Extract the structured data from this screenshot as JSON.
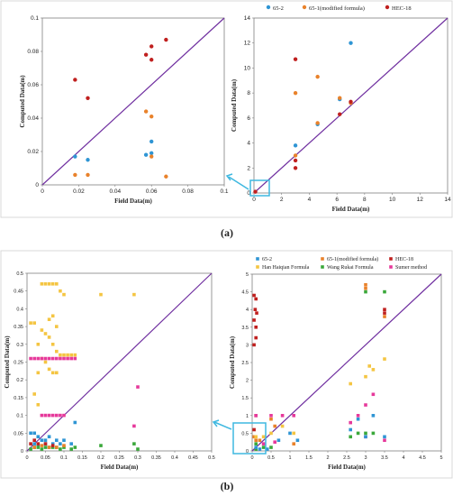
{
  "figure": {
    "panel_a_label": "(a)",
    "panel_b_label": "(b)"
  },
  "colors": {
    "series_65_2": "#2f95d4",
    "series_65_1": "#e9822b",
    "series_hec18": "#c0201f",
    "series_han": "#f4c542",
    "series_wang": "#3aa83a",
    "series_sumer": "#e6399b",
    "diagonal": "#7030a0",
    "highlight": "#3fb8e0"
  },
  "chart_data": [
    {
      "id": "a_left",
      "type": "scatter",
      "title": "",
      "xlabel": "Field Data(m)",
      "ylabel": "Computed Data(m)",
      "xlim": [
        0,
        0.1
      ],
      "ylim": [
        0,
        0.1
      ],
      "xticks": [
        "0",
        "0.02",
        "0.04",
        "0.06",
        "0.08",
        "0.1"
      ],
      "yticks": [
        "0",
        "0.02",
        "0.04",
        "0.06",
        "0.08",
        "0.1"
      ],
      "grid": false,
      "diagonal": true,
      "series": [
        {
          "key": "series_65_2",
          "points": [
            [
              0.018,
              0.017
            ],
            [
              0.025,
              0.015
            ],
            [
              0.057,
              0.018
            ],
            [
              0.06,
              0.019
            ],
            [
              0.06,
              0.026
            ]
          ]
        },
        {
          "key": "series_65_1",
          "points": [
            [
              0.018,
              0.006
            ],
            [
              0.025,
              0.006
            ],
            [
              0.057,
              0.044
            ],
            [
              0.06,
              0.041
            ],
            [
              0.06,
              0.017
            ],
            [
              0.068,
              0.005
            ]
          ]
        },
        {
          "key": "series_hec18",
          "points": [
            [
              0.018,
              0.063
            ],
            [
              0.025,
              0.052
            ],
            [
              0.057,
              0.078
            ],
            [
              0.06,
              0.083
            ],
            [
              0.06,
              0.075
            ],
            [
              0.068,
              0.087
            ]
          ]
        }
      ]
    },
    {
      "id": "a_right",
      "type": "scatter",
      "title": "",
      "xlabel": "Field Data(m)",
      "ylabel": "Computed Data(m)",
      "xlim": [
        0,
        14
      ],
      "ylim": [
        0,
        14
      ],
      "xticks": [
        "0",
        "2",
        "4",
        "6",
        "8",
        "10",
        "12",
        "14"
      ],
      "yticks": [
        "0",
        "2",
        "4",
        "6",
        "8",
        "10",
        "12",
        "14"
      ],
      "grid": false,
      "diagonal": true,
      "legend": [
        {
          "key": "series_65_2",
          "label": "65-2"
        },
        {
          "key": "series_65_1",
          "label": "65-1(modified formula)"
        },
        {
          "key": "series_hec18",
          "label": "HEC-18"
        }
      ],
      "series": [
        {
          "key": "series_65_2",
          "points": [
            [
              3,
              3.8
            ],
            [
              4.6,
              5.5
            ],
            [
              6.2,
              7.5
            ],
            [
              7,
              12
            ]
          ]
        },
        {
          "key": "series_65_1",
          "points": [
            [
              3,
              3
            ],
            [
              3,
              8
            ],
            [
              4.6,
              9.3
            ],
            [
              4.6,
              5.6
            ],
            [
              6.2,
              7.6
            ],
            [
              7,
              7.2
            ]
          ]
        },
        {
          "key": "series_hec18",
          "points": [
            [
              3,
              2.6
            ],
            [
              3,
              10.7
            ],
            [
              3,
              2
            ],
            [
              6.2,
              6.3
            ],
            [
              7,
              7.3
            ],
            [
              0.1,
              0.1
            ]
          ]
        }
      ]
    },
    {
      "id": "b_left",
      "type": "scatter",
      "title": "",
      "xlabel": "Field Data(m)",
      "ylabel": "Computed Data(m)",
      "xlim": [
        0,
        0.5
      ],
      "ylim": [
        0,
        0.5
      ],
      "xticks": [
        "0",
        "0.05",
        "0.1",
        "0.15",
        "0.2",
        "0.25",
        "0.3",
        "0.35",
        "0.4",
        "0.45",
        "0.5"
      ],
      "yticks": [
        "0",
        "0.05",
        "0.1",
        "0.15",
        "0.2",
        "0.25",
        "0.3",
        "0.35",
        "0.4",
        "0.45",
        "0.5"
      ],
      "grid": false,
      "diagonal": true,
      "series": [
        {
          "key": "series_han",
          "points": [
            [
              0.01,
              0.36
            ],
            [
              0.02,
              0.36
            ],
            [
              0.03,
              0.3
            ],
            [
              0.04,
              0.47
            ],
            [
              0.05,
              0.47
            ],
            [
              0.06,
              0.47
            ],
            [
              0.07,
              0.47
            ],
            [
              0.08,
              0.47
            ],
            [
              0.09,
              0.45
            ],
            [
              0.1,
              0.44
            ],
            [
              0.04,
              0.34
            ],
            [
              0.05,
              0.33
            ],
            [
              0.06,
              0.32
            ],
            [
              0.07,
              0.3
            ],
            [
              0.08,
              0.28
            ],
            [
              0.09,
              0.27
            ],
            [
              0.05,
              0.25
            ],
            [
              0.06,
              0.23
            ],
            [
              0.07,
              0.22
            ],
            [
              0.08,
              0.22
            ],
            [
              0.1,
              0.27
            ],
            [
              0.11,
              0.27
            ],
            [
              0.12,
              0.27
            ],
            [
              0.13,
              0.27
            ],
            [
              0.2,
              0.44
            ],
            [
              0.29,
              0.44
            ],
            [
              0.02,
              0.16
            ],
            [
              0.03,
              0.13
            ],
            [
              0.06,
              0.37
            ],
            [
              0.07,
              0.38
            ],
            [
              0.08,
              0.35
            ],
            [
              0.03,
              0.22
            ],
            [
              0.04,
              0.26
            ]
          ]
        },
        {
          "key": "series_sumer",
          "points": [
            [
              0.01,
              0.26
            ],
            [
              0.02,
              0.26
            ],
            [
              0.03,
              0.26
            ],
            [
              0.04,
              0.26
            ],
            [
              0.05,
              0.26
            ],
            [
              0.06,
              0.26
            ],
            [
              0.07,
              0.26
            ],
            [
              0.08,
              0.26
            ],
            [
              0.09,
              0.26
            ],
            [
              0.1,
              0.26
            ],
            [
              0.11,
              0.26
            ],
            [
              0.12,
              0.26
            ],
            [
              0.13,
              0.26
            ],
            [
              0.04,
              0.1
            ],
            [
              0.05,
              0.1
            ],
            [
              0.06,
              0.1
            ],
            [
              0.07,
              0.1
            ],
            [
              0.08,
              0.1
            ],
            [
              0.09,
              0.1
            ],
            [
              0.1,
              0.1
            ],
            [
              0.29,
              0.07
            ],
            [
              0.3,
              0.18
            ]
          ]
        },
        {
          "key": "series_65_2",
          "points": [
            [
              0.01,
              0.05
            ],
            [
              0.02,
              0.05
            ],
            [
              0.03,
              0.04
            ],
            [
              0.04,
              0.03
            ],
            [
              0.05,
              0.03
            ],
            [
              0.06,
              0.04
            ],
            [
              0.07,
              0.02
            ],
            [
              0.08,
              0.03
            ],
            [
              0.09,
              0.02
            ],
            [
              0.1,
              0.03
            ],
            [
              0.12,
              0.02
            ],
            [
              0.13,
              0.08
            ],
            [
              0.02,
              0.02
            ],
            [
              0.05,
              0.02
            ],
            [
              0.03,
              0.015
            ]
          ]
        },
        {
          "key": "series_wang",
          "points": [
            [
              0.01,
              0.005
            ],
            [
              0.02,
              0.01
            ],
            [
              0.03,
              0.01
            ],
            [
              0.04,
              0.005
            ],
            [
              0.05,
              0.01
            ],
            [
              0.06,
              0.01
            ],
            [
              0.07,
              0.01
            ],
            [
              0.08,
              0.01
            ],
            [
              0.09,
              0.005
            ],
            [
              0.1,
              0.01
            ],
            [
              0.12,
              0.005
            ],
            [
              0.13,
              0.01
            ],
            [
              0.2,
              0.015
            ],
            [
              0.29,
              0.02
            ],
            [
              0.3,
              0.005
            ]
          ]
        },
        {
          "key": "series_hec18",
          "points": [
            [
              0.01,
              0.02
            ],
            [
              0.02,
              0.03
            ],
            [
              0.03,
              0.02
            ],
            [
              0.05,
              0.02
            ],
            [
              0.07,
              0.015
            ]
          ]
        },
        {
          "key": "series_65_1",
          "points": [
            [
              0.02,
              0.01
            ],
            [
              0.04,
              0.015
            ],
            [
              0.06,
              0.01
            ],
            [
              0.08,
              0.01
            ],
            [
              0.1,
              0.015
            ]
          ]
        }
      ]
    },
    {
      "id": "b_right",
      "type": "scatter",
      "title": "",
      "xlabel": "Field Data(m)",
      "ylabel": "Computed Data(m)",
      "xlim": [
        0,
        5
      ],
      "ylim": [
        0,
        5
      ],
      "xticks": [
        "0",
        "0.5",
        "1",
        "1.5",
        "2",
        "2.5",
        "3",
        "3.5",
        "4",
        "4.5",
        "5"
      ],
      "yticks": [
        "0",
        "0.5",
        "1",
        "1.5",
        "2",
        "2.5",
        "3",
        "3.5",
        "4",
        "4.5",
        "5"
      ],
      "grid": false,
      "diagonal": true,
      "legend": [
        {
          "key": "series_65_2",
          "label": "65-2"
        },
        {
          "key": "series_65_1",
          "label": "65-1(modified formula)"
        },
        {
          "key": "series_hec18",
          "label": "HEC-18"
        },
        {
          "key": "series_han",
          "label": "Han Haiqian Formula"
        },
        {
          "key": "series_wang",
          "label": "Wang Rukai Formula"
        },
        {
          "key": "series_sumer",
          "label": "Sumer method"
        }
      ],
      "series": [
        {
          "key": "series_hec18",
          "points": [
            [
              0.05,
              4.4
            ],
            [
              0.1,
              4.3
            ],
            [
              0.08,
              4.0
            ],
            [
              0.12,
              3.9
            ],
            [
              0.05,
              3.7
            ],
            [
              0.1,
              3.5
            ],
            [
              0.05,
              3.0
            ],
            [
              0.1,
              3.2
            ],
            [
              3.5,
              4.0
            ],
            [
              3.5,
              3.9
            ],
            [
              0.1,
              1.0
            ],
            [
              0.05,
              0.6
            ]
          ]
        },
        {
          "key": "series_65_1",
          "points": [
            [
              3,
              4.7
            ],
            [
              3,
              4.6
            ],
            [
              3.5,
              3.8
            ],
            [
              0.05,
              0.4
            ],
            [
              0.1,
              0.3
            ],
            [
              0.5,
              0.9
            ],
            [
              0.6,
              0.7
            ],
            [
              0.2,
              0.3
            ],
            [
              1.1,
              0.2
            ]
          ]
        },
        {
          "key": "series_wang",
          "points": [
            [
              3,
              4.5
            ],
            [
              3.5,
              4.5
            ],
            [
              2.6,
              0.4
            ],
            [
              2.8,
              0.5
            ],
            [
              3,
              0.5
            ],
            [
              3.2,
              0.5
            ],
            [
              0.1,
              0.2
            ],
            [
              0.3,
              0.1
            ],
            [
              0.5,
              0.1
            ],
            [
              0.1,
              0.05
            ]
          ]
        },
        {
          "key": "series_han",
          "points": [
            [
              2.6,
              1.9
            ],
            [
              3,
              2.1
            ],
            [
              3.1,
              2.4
            ],
            [
              3.2,
              2.3
            ],
            [
              3.5,
              2.6
            ],
            [
              0.1,
              0.4
            ],
            [
              0.3,
              0.4
            ],
            [
              0.5,
              0.5
            ],
            [
              0.8,
              0.7
            ],
            [
              1.1,
              0.5
            ]
          ]
        },
        {
          "key": "series_sumer",
          "points": [
            [
              0.1,
              1.0
            ],
            [
              0.5,
              1.0
            ],
            [
              0.8,
              1.0
            ],
            [
              1.1,
              1.0
            ],
            [
              2.6,
              0.8
            ],
            [
              2.8,
              1.0
            ],
            [
              3,
              1.3
            ],
            [
              3.2,
              1.6
            ],
            [
              3.5,
              0.3
            ],
            [
              0.3,
              0.2
            ],
            [
              0.6,
              0.25
            ],
            [
              3.0,
              0.4
            ]
          ]
        },
        {
          "key": "series_65_2",
          "points": [
            [
              2.6,
              0.6
            ],
            [
              2.8,
              0.9
            ],
            [
              3,
              0.4
            ],
            [
              3.2,
              1.0
            ],
            [
              3.5,
              0.4
            ],
            [
              0.1,
              0.1
            ],
            [
              0.4,
              0.05
            ],
            [
              0.7,
              0.3
            ],
            [
              1.2,
              0.3
            ],
            [
              1.0,
              0.5
            ],
            [
              0.2,
              0.05
            ]
          ]
        }
      ]
    }
  ]
}
